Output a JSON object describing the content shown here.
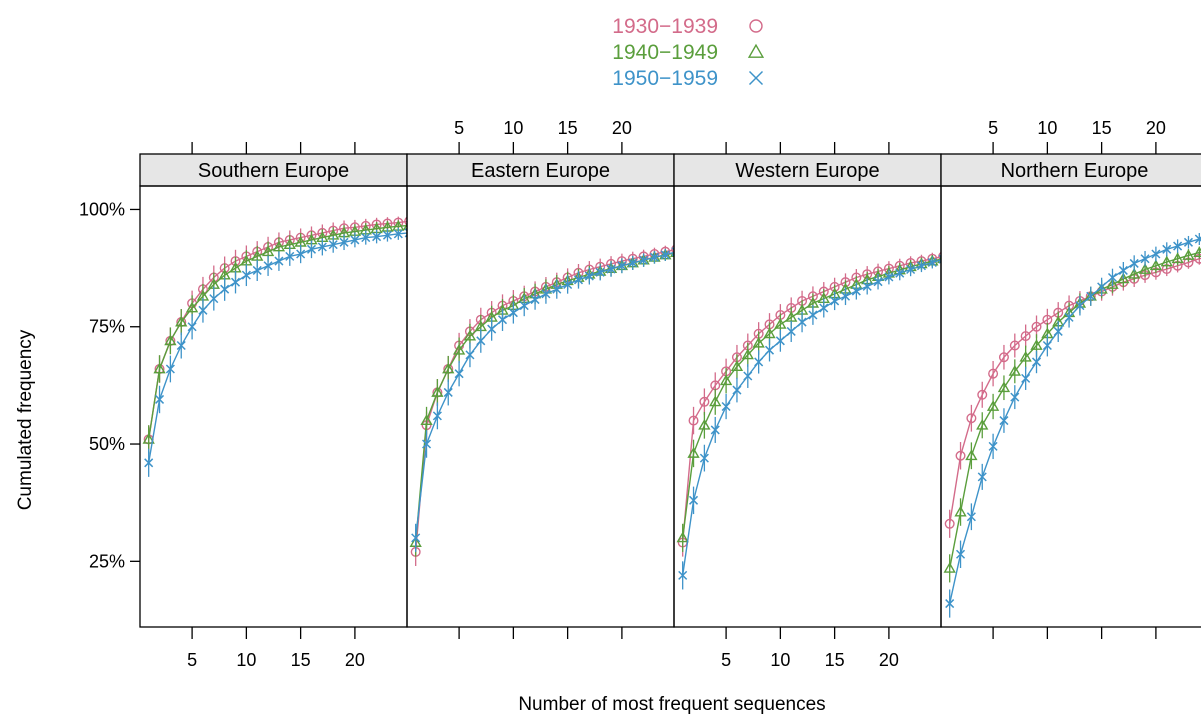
{
  "chart_data": {
    "type": "line",
    "xlabel": "Number of most frequent sequences",
    "ylabel": "Cumulated frequency",
    "xlim": [
      0,
      25
    ],
    "ylim": [
      0.11,
      1.05
    ],
    "x_ticks": [
      5,
      10,
      15,
      20
    ],
    "x_tick_labels": [
      "5",
      "10",
      "15",
      "20"
    ],
    "y_ticks": [
      0.25,
      0.5,
      0.75,
      1.0
    ],
    "y_tick_labels": [
      "25%",
      "50%",
      "75%",
      "100%"
    ],
    "legend_position": "top-center",
    "error_bars": true,
    "series_styles": [
      {
        "name": "1930−1939",
        "color": "#D36B8A",
        "marker": "circle"
      },
      {
        "name": "1940−1949",
        "color": "#5A9E3C",
        "marker": "triangle"
      },
      {
        "name": "1950−1959",
        "color": "#3E93C9",
        "marker": "cross"
      }
    ],
    "panels": [
      {
        "title": "Southern Europe",
        "x": [
          1,
          2,
          3,
          4,
          5,
          6,
          7,
          8,
          9,
          10,
          11,
          12,
          13,
          14,
          15,
          16,
          17,
          18,
          19,
          20,
          21,
          22,
          23,
          24,
          25
        ],
        "series": [
          {
            "name": "1930−1939",
            "values": [
              0.51,
              0.66,
              0.72,
              0.76,
              0.8,
              0.83,
              0.855,
              0.875,
              0.89,
              0.9,
              0.91,
              0.92,
              0.93,
              0.935,
              0.94,
              0.945,
              0.95,
              0.955,
              0.96,
              0.962,
              0.965,
              0.968,
              0.97,
              0.972,
              0.975
            ]
          },
          {
            "name": "1940−1949",
            "values": [
              0.51,
              0.66,
              0.72,
              0.76,
              0.79,
              0.815,
              0.84,
              0.86,
              0.875,
              0.89,
              0.9,
              0.91,
              0.92,
              0.925,
              0.93,
              0.935,
              0.94,
              0.945,
              0.95,
              0.953,
              0.956,
              0.959,
              0.962,
              0.964,
              0.966
            ]
          },
          {
            "name": "1950−1959",
            "values": [
              0.46,
              0.595,
              0.66,
              0.71,
              0.75,
              0.785,
              0.81,
              0.83,
              0.845,
              0.86,
              0.87,
              0.88,
              0.89,
              0.9,
              0.905,
              0.915,
              0.92,
              0.925,
              0.93,
              0.935,
              0.94,
              0.942,
              0.945,
              0.948,
              0.95
            ]
          }
        ]
      },
      {
        "title": "Eastern Europe",
        "x": [
          1,
          2,
          3,
          4,
          5,
          6,
          7,
          8,
          9,
          10,
          11,
          12,
          13,
          14,
          15,
          16,
          17,
          18,
          19,
          20,
          21,
          22,
          23,
          24,
          25
        ],
        "series": [
          {
            "name": "1930−1939",
            "values": [
              0.27,
              0.54,
              0.61,
              0.66,
              0.71,
              0.74,
              0.765,
              0.78,
              0.795,
              0.805,
              0.815,
              0.825,
              0.835,
              0.845,
              0.855,
              0.865,
              0.872,
              0.878,
              0.884,
              0.89,
              0.895,
              0.9,
              0.905,
              0.91,
              0.915
            ]
          },
          {
            "name": "1940−1949",
            "values": [
              0.29,
              0.55,
              0.61,
              0.66,
              0.7,
              0.73,
              0.75,
              0.77,
              0.785,
              0.795,
              0.81,
              0.82,
              0.83,
              0.84,
              0.848,
              0.855,
              0.862,
              0.868,
              0.874,
              0.88,
              0.886,
              0.892,
              0.898,
              0.903,
              0.908
            ]
          },
          {
            "name": "1950−1959",
            "values": [
              0.3,
              0.5,
              0.56,
              0.61,
              0.65,
              0.69,
              0.72,
              0.745,
              0.765,
              0.78,
              0.795,
              0.808,
              0.82,
              0.83,
              0.84,
              0.85,
              0.858,
              0.866,
              0.873,
              0.88,
              0.886,
              0.892,
              0.898,
              0.903,
              0.91
            ]
          }
        ]
      },
      {
        "title": "Western Europe",
        "x": [
          1,
          2,
          3,
          4,
          5,
          6,
          7,
          8,
          9,
          10,
          11,
          12,
          13,
          14,
          15,
          16,
          17,
          18,
          19,
          20,
          21,
          22,
          23,
          24,
          25
        ],
        "series": [
          {
            "name": "1930−1939",
            "values": [
              0.29,
              0.55,
              0.59,
              0.625,
              0.655,
              0.685,
              0.71,
              0.735,
              0.755,
              0.775,
              0.79,
              0.805,
              0.815,
              0.825,
              0.835,
              0.845,
              0.855,
              0.862,
              0.868,
              0.874,
              0.88,
              0.886,
              0.89,
              0.895,
              0.9
            ]
          },
          {
            "name": "1940−1949",
            "values": [
              0.3,
              0.48,
              0.54,
              0.59,
              0.635,
              0.665,
              0.69,
              0.715,
              0.735,
              0.755,
              0.77,
              0.785,
              0.8,
              0.81,
              0.82,
              0.83,
              0.84,
              0.85,
              0.857,
              0.864,
              0.871,
              0.878,
              0.884,
              0.89,
              0.895
            ]
          },
          {
            "name": "1950−1959",
            "values": [
              0.22,
              0.38,
              0.47,
              0.53,
              0.58,
              0.615,
              0.645,
              0.675,
              0.7,
              0.72,
              0.74,
              0.76,
              0.775,
              0.79,
              0.805,
              0.815,
              0.826,
              0.836,
              0.846,
              0.856,
              0.864,
              0.872,
              0.88,
              0.887,
              0.894
            ]
          }
        ]
      },
      {
        "title": "Northern Europe",
        "x": [
          1,
          2,
          3,
          4,
          5,
          6,
          7,
          8,
          9,
          10,
          11,
          12,
          13,
          14,
          15,
          16,
          17,
          18,
          19,
          20,
          21,
          22,
          23,
          24,
          25
        ],
        "series": [
          {
            "name": "1930−1939",
            "values": [
              0.33,
              0.475,
              0.555,
              0.605,
              0.65,
              0.685,
              0.71,
              0.73,
              0.75,
              0.765,
              0.78,
              0.795,
              0.805,
              0.815,
              0.825,
              0.835,
              0.845,
              0.852,
              0.86,
              0.866,
              0.873,
              0.88,
              0.887,
              0.895,
              0.9
            ]
          },
          {
            "name": "1940−1949",
            "values": [
              0.235,
              0.355,
              0.475,
              0.54,
              0.58,
              0.62,
              0.655,
              0.685,
              0.71,
              0.735,
              0.76,
              0.78,
              0.8,
              0.815,
              0.83,
              0.84,
              0.852,
              0.862,
              0.872,
              0.88,
              0.888,
              0.895,
              0.902,
              0.908,
              0.912
            ]
          },
          {
            "name": "1950−1959",
            "values": [
              0.16,
              0.265,
              0.345,
              0.43,
              0.495,
              0.55,
              0.6,
              0.64,
              0.675,
              0.71,
              0.74,
              0.77,
              0.795,
              0.815,
              0.835,
              0.855,
              0.87,
              0.885,
              0.895,
              0.905,
              0.915,
              0.922,
              0.93,
              0.937,
              0.942
            ]
          }
        ]
      }
    ]
  }
}
